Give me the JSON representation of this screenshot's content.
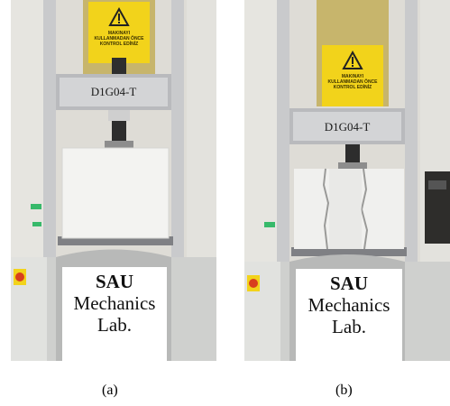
{
  "photos": [
    {
      "id": "a",
      "warning_sign_text": "MAKINAYI KULLANMADAN ÖNCE KONTROL EDİNİZ",
      "specimen_label": "D1G04-T",
      "lab_sign": {
        "line1": "SAU",
        "line2": "Mechanics",
        "line3": "Lab."
      },
      "caption": "(a)",
      "specimen_state": "intact"
    },
    {
      "id": "b",
      "warning_sign_text": "MAKINAYI KULLANMADAN ÖNCE KONTROL EDİNİZ",
      "specimen_label": "D1G04-T",
      "lab_sign": {
        "line1": "SAU",
        "line2": "Mechanics",
        "line3": "Lab."
      },
      "caption": "(b)",
      "specimen_state": "cracked"
    }
  ],
  "colors": {
    "warning_sign": "#f2d31b",
    "frame_metal": "#bfc1c4",
    "specimen": "#f1f1ef",
    "machine_base": "#d4d5d3",
    "emergency_button": "#d8401e"
  },
  "icons": [
    "warning-triangle-icon",
    "emergency-stop-icon"
  ]
}
